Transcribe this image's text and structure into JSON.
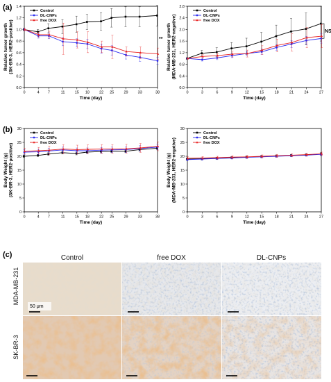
{
  "panel_labels": [
    "(a)",
    "(b)",
    "(c)"
  ],
  "colors": {
    "Control": "#000000",
    "DL-CNPs": "#2a2af0",
    "free DOX": "#e82020"
  },
  "chart_data": [
    {
      "id": "a-left",
      "type": "line",
      "xlabel": "Time (day)",
      "ylabel": "Relative tumor growth (SK-BR-3, HER2-positive)",
      "ylabel_lines": [
        "Relative tumor growth",
        "(SK-BR-3, HER2-positive)"
      ],
      "xlim": [
        0,
        38
      ],
      "ylim": [
        0,
        1.4
      ],
      "xticks": [
        0,
        4,
        7,
        11,
        15,
        18,
        22,
        25,
        29,
        33,
        38
      ],
      "yticks": [
        0.0,
        0.2,
        0.4,
        0.6,
        0.8,
        1.0,
        1.2,
        1.4
      ],
      "ytick_labels": [
        "0.0",
        "0.2",
        "0.4",
        "0.6",
        "0.8",
        "1.0",
        "1.2",
        "1.4"
      ],
      "x": [
        0,
        4,
        7,
        11,
        15,
        18,
        22,
        25,
        29,
        33,
        38
      ],
      "series": [
        {
          "name": "Control",
          "values": [
            1.0,
            0.96,
            1.02,
            1.05,
            1.09,
            1.13,
            1.14,
            1.2,
            1.22,
            1.22,
            1.24
          ],
          "err": [
            0.02,
            0.04,
            0.08,
            0.12,
            0.14,
            0.13,
            0.15,
            0.16,
            0.17,
            0.17,
            0.18
          ]
        },
        {
          "name": "DL-CNPs",
          "values": [
            1.0,
            0.89,
            0.89,
            0.79,
            0.77,
            0.75,
            0.67,
            0.64,
            0.56,
            0.52,
            0.46
          ],
          "err": [
            0.02,
            0.04,
            0.05,
            0.07,
            0.07,
            0.08,
            0.08,
            0.08,
            0.07,
            0.07,
            0.06
          ]
        },
        {
          "name": "free DOX",
          "values": [
            1.0,
            0.91,
            0.91,
            0.84,
            0.82,
            0.78,
            0.7,
            0.7,
            0.62,
            0.6,
            0.58
          ],
          "err": [
            0.02,
            0.04,
            0.06,
            0.27,
            0.14,
            0.18,
            0.1,
            0.2,
            0.08,
            0.1,
            0.1
          ]
        }
      ],
      "annotation": "**",
      "legend": "top-left"
    },
    {
      "id": "a-right",
      "type": "line",
      "xlabel": "Time (day)",
      "ylabel": "Relative tumor growth (MDA-MB-231, HER2-negative)",
      "ylabel_lines": [
        "Relative tumor growth",
        "(MDA-MB-231, HER2-negative)"
      ],
      "xlim": [
        0,
        27
      ],
      "ylim": [
        0,
        2.8
      ],
      "xticks": [
        0,
        3,
        6,
        9,
        12,
        15,
        18,
        21,
        24,
        27
      ],
      "yticks": [
        0.0,
        0.4,
        0.8,
        1.2,
        1.6,
        2.0,
        2.4,
        2.8
      ],
      "ytick_labels": [
        "0.0",
        "0.4",
        "0.8",
        "1.2",
        "1.6",
        "2.0",
        "2.4",
        "2.8"
      ],
      "x": [
        0,
        3,
        6,
        9,
        12,
        15,
        18,
        21,
        24,
        27
      ],
      "series": [
        {
          "name": "Control",
          "values": [
            1.0,
            1.18,
            1.22,
            1.35,
            1.42,
            1.58,
            1.77,
            1.93,
            2.02,
            2.2
          ],
          "err": [
            0.03,
            0.1,
            0.15,
            0.2,
            0.28,
            0.32,
            0.38,
            0.45,
            0.55,
            0.6
          ]
        },
        {
          "name": "DL-CNPs",
          "values": [
            1.0,
            0.96,
            1.02,
            1.1,
            1.17,
            1.23,
            1.38,
            1.5,
            1.62,
            1.69
          ],
          "err": [
            0.02,
            0.05,
            0.06,
            0.07,
            0.08,
            0.09,
            0.1,
            0.12,
            0.14,
            0.16
          ]
        },
        {
          "name": "free DOX",
          "values": [
            1.0,
            1.07,
            1.1,
            1.15,
            1.17,
            1.29,
            1.45,
            1.55,
            1.72,
            1.77
          ],
          "err": [
            0.02,
            0.06,
            0.08,
            0.1,
            0.12,
            0.15,
            0.22,
            0.3,
            0.35,
            0.4
          ]
        }
      ],
      "annotation": "NS",
      "legend": "top-left"
    },
    {
      "id": "b-left",
      "type": "line",
      "xlabel": "Time (day)",
      "ylabel": "Body Weight (g) (SK-BR-3, HER2-positive)",
      "ylabel_lines": [
        "Body Weight (g)",
        "(SK-BR-3, HER2-positive)"
      ],
      "xlim": [
        0,
        38
      ],
      "ylim": [
        0,
        30
      ],
      "xticks": [
        0,
        4,
        7,
        11,
        15,
        18,
        22,
        25,
        29,
        33,
        38
      ],
      "yticks": [
        0,
        5,
        10,
        15,
        20,
        25,
        30
      ],
      "ytick_labels": [
        "0",
        "5",
        "10",
        "15",
        "20",
        "25",
        "30"
      ],
      "x": [
        0,
        4,
        7,
        11,
        15,
        18,
        22,
        25,
        29,
        33,
        38
      ],
      "series": [
        {
          "name": "Control",
          "values": [
            20.0,
            20.3,
            20.8,
            21.3,
            21.0,
            21.5,
            21.7,
            21.8,
            21.8,
            22.4,
            22.9
          ],
          "err": [
            0.4,
            0.4,
            0.5,
            0.5,
            0.5,
            0.5,
            0.5,
            0.5,
            0.5,
            0.5,
            0.6
          ]
        },
        {
          "name": "DL-CNPs",
          "values": [
            21.5,
            21.6,
            21.9,
            22.3,
            22.0,
            22.0,
            22.2,
            22.3,
            22.4,
            22.8,
            23.3
          ],
          "err": [
            0.8,
            0.9,
            1.0,
            1.0,
            1.0,
            1.0,
            1.0,
            1.0,
            1.0,
            1.0,
            1.0
          ]
        },
        {
          "name": "free DOX",
          "values": [
            21.8,
            22.0,
            22.2,
            22.6,
            22.4,
            22.5,
            22.6,
            22.6,
            22.7,
            23.0,
            23.6
          ],
          "err": [
            1.0,
            1.2,
            1.5,
            1.6,
            1.6,
            1.6,
            1.6,
            1.6,
            1.6,
            1.6,
            1.6
          ]
        }
      ],
      "legend": "top-left"
    },
    {
      "id": "b-right",
      "type": "line",
      "xlabel": "Time (day)",
      "ylabel": "Body Weight (g) (MDA-MB-231, HER2-negative)",
      "ylabel_lines": [
        "Body Weight (g)",
        "(MDA-MB-231, HER2-negative)"
      ],
      "xlim": [
        0,
        27
      ],
      "ylim": [
        0,
        30
      ],
      "xticks": [
        0,
        3,
        6,
        9,
        12,
        15,
        18,
        21,
        24,
        27
      ],
      "yticks": [
        0,
        5,
        10,
        15,
        20,
        25,
        30
      ],
      "ytick_labels": [
        "0",
        "5",
        "10",
        "15",
        "20",
        "25",
        "30"
      ],
      "x": [
        0,
        3,
        6,
        9,
        12,
        15,
        18,
        21,
        24,
        27
      ],
      "series": [
        {
          "name": "Control",
          "values": [
            19.0,
            19.1,
            19.3,
            19.5,
            19.7,
            19.9,
            20.1,
            20.3,
            20.5,
            20.8
          ],
          "err": [
            0.4,
            0.4,
            0.4,
            0.4,
            0.4,
            0.4,
            0.4,
            0.4,
            0.4,
            0.5
          ]
        },
        {
          "name": "DL-CNPs",
          "values": [
            18.8,
            19.0,
            19.2,
            19.4,
            19.6,
            19.8,
            20.0,
            20.2,
            20.4,
            20.7
          ],
          "err": [
            0.4,
            0.4,
            0.4,
            0.4,
            0.4,
            0.4,
            0.4,
            0.4,
            0.4,
            0.5
          ]
        },
        {
          "name": "free DOX",
          "values": [
            19.3,
            19.4,
            19.5,
            19.7,
            19.8,
            20.0,
            20.2,
            20.4,
            20.6,
            20.9
          ],
          "err": [
            0.5,
            0.5,
            0.5,
            0.5,
            0.5,
            0.5,
            0.5,
            0.5,
            0.5,
            0.6
          ]
        }
      ],
      "legend": "top-left"
    }
  ],
  "histology": {
    "columns": [
      "Control",
      "free DOX",
      "DL-CNPs"
    ],
    "rows": [
      "MDA-MB-231",
      "SK-BR-3"
    ],
    "scale_bar": "50 μm"
  }
}
